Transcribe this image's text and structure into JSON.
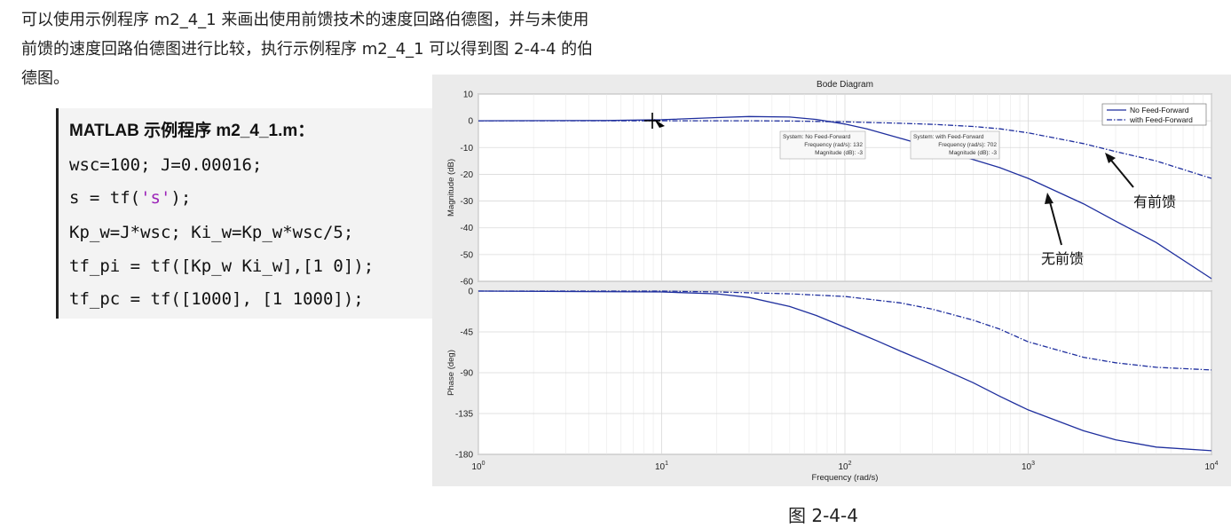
{
  "text": {
    "line1": "可以使用示例程序 m2_4_1 来画出使用前馈技术的速度回路伯德图，并与未使用",
    "line2": "前馈的速度回路伯德图进行比较，执行示例程序 m2_4_1 可以得到图 2-4-4 的伯",
    "line3": "德图。"
  },
  "code": {
    "title": "MATLAB 示例程序 m2_4_1.m：",
    "lines": [
      "wsc=100; J=0.00016;",
      "s = tf(",
      "'s'",
      ");",
      "Kp_w=J*wsc; Ki_w=Kp_w*wsc/5;",
      "tf_pi = tf([Kp_w Ki_w],[1 0]);",
      "tf_pc = tf([1000], [1 1000]);"
    ]
  },
  "caption": "图 2-4-4",
  "colors": {
    "no_ff": "#1f2f9e",
    "with_ff": "#1f2f9e",
    "figure_bg": "#ebebeb",
    "axes_bg": "#ffffff",
    "grid": "#d9d9d9"
  },
  "chart_data": {
    "type": "line",
    "title": "Bode Diagram",
    "xlabel": "Frequency  (rad/s)",
    "x_scale": "log",
    "xlim": [
      1,
      10000
    ],
    "x_ticks": [
      {
        "value": 1,
        "base": "10",
        "exp": "0"
      },
      {
        "value": 10,
        "base": "10",
        "exp": "1"
      },
      {
        "value": 100,
        "base": "10",
        "exp": "2"
      },
      {
        "value": 1000,
        "base": "10",
        "exp": "3"
      },
      {
        "value": 10000,
        "base": "10",
        "exp": "4"
      }
    ],
    "grid": true,
    "legend_position": "top-right",
    "legend": [
      "No Feed-Forward",
      "with Feed-Forward"
    ],
    "magnitude": {
      "ylabel": "Magnitude (dB)",
      "ylim": [
        -60,
        10
      ],
      "yticks": [
        10,
        0,
        -10,
        -20,
        -30,
        -40,
        -50,
        -60
      ],
      "series": [
        {
          "name": "No Feed-Forward",
          "style": "solid",
          "x": [
            1,
            5,
            10,
            20,
            30,
            50,
            70,
            100,
            132,
            200,
            300,
            500,
            700,
            1000,
            2000,
            3000,
            5000,
            10000
          ],
          "y": [
            0,
            0.1,
            0.4,
            1.2,
            1.6,
            1.4,
            0.5,
            -1.2,
            -3,
            -6.5,
            -10,
            -14.5,
            -17.5,
            -21.5,
            -31,
            -37.5,
            -45.5,
            -59
          ]
        },
        {
          "name": "with Feed-Forward",
          "style": "dashdot",
          "x": [
            1,
            10,
            30,
            50,
            100,
            200,
            300,
            500,
            702,
            1000,
            2000,
            3000,
            5000,
            10000
          ],
          "y": [
            0,
            0,
            0,
            -0.1,
            -0.4,
            -0.9,
            -1.3,
            -2.1,
            -3,
            -4.5,
            -8.5,
            -11.5,
            -15,
            -21.5
          ]
        }
      ],
      "datatips": [
        {
          "system": "System: No Feed-Forward",
          "frequency": "Frequency (rad/s): 132",
          "magnitude": "Magnitude (dB): -3"
        },
        {
          "system": "System: with Feed-Forward",
          "frequency": "Frequency (rad/s): 702",
          "magnitude": "Magnitude (dB): -3"
        }
      ]
    },
    "phase": {
      "ylabel": "Phase (deg)",
      "ylim": [
        -180,
        0
      ],
      "yticks": [
        0,
        -45,
        -90,
        -135,
        -180
      ],
      "series": [
        {
          "name": "No Feed-Forward",
          "style": "solid",
          "x": [
            1,
            10,
            20,
            30,
            50,
            70,
            100,
            150,
            200,
            300,
            500,
            700,
            1000,
            2000,
            3000,
            5000,
            10000
          ],
          "y": [
            0,
            -1,
            -3,
            -7,
            -17,
            -27,
            -40,
            -55,
            -66,
            -81,
            -101,
            -116,
            -131,
            -154,
            -164,
            -172,
            -176
          ]
        },
        {
          "name": "with Feed-Forward",
          "style": "dashdot",
          "x": [
            1,
            10,
            20,
            50,
            100,
            200,
            300,
            500,
            700,
            1000,
            2000,
            3000,
            5000,
            10000
          ],
          "y": [
            0,
            0,
            -1,
            -3,
            -6,
            -13,
            -20,
            -32,
            -42,
            -56,
            -73,
            -79,
            -84,
            -87
          ]
        }
      ]
    },
    "annotations": [
      "有前馈",
      "无前馈"
    ]
  }
}
